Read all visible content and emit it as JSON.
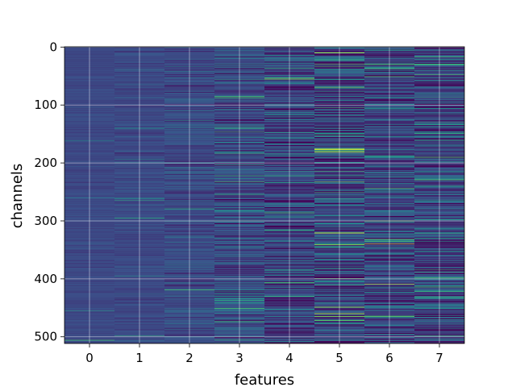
{
  "chart_data": {
    "type": "heatmap",
    "title": "",
    "xlabel": "features",
    "ylabel": "channels",
    "x_categories": [
      0,
      1,
      2,
      3,
      4,
      5,
      6,
      7
    ],
    "y_range": [
      0,
      511
    ],
    "y_ticks": [
      0,
      100,
      200,
      300,
      400,
      500
    ],
    "rows": 512,
    "grid": true,
    "colormap": "viridis",
    "colormap_stops": [
      "#440154",
      "#3b528b",
      "#21918c",
      "#5ec962",
      "#fde725"
    ],
    "column_profiles": [
      {
        "feature": 0,
        "mean": 0.22,
        "spread": 0.02
      },
      {
        "feature": 1,
        "mean": 0.22,
        "spread": 0.035
      },
      {
        "feature": 2,
        "mean": 0.23,
        "spread": 0.06
      },
      {
        "feature": 3,
        "mean": 0.22,
        "spread": 0.1
      },
      {
        "feature": 4,
        "mean": 0.2,
        "spread": 0.13
      },
      {
        "feature": 5,
        "mean": 0.2,
        "spread": 0.17
      },
      {
        "feature": 6,
        "mean": 0.21,
        "spread": 0.13
      },
      {
        "feature": 7,
        "mean": 0.2,
        "spread": 0.14
      }
    ],
    "highlights": [
      {
        "feature": 5,
        "channel": 176,
        "value": 0.95
      },
      {
        "feature": 5,
        "channel": 177,
        "value": 0.9
      },
      {
        "feature": 6,
        "channel": 409,
        "value": 0.98
      },
      {
        "feature": 3,
        "channel": 203,
        "value": 0.62
      },
      {
        "feature": 4,
        "channel": 406,
        "value": 0.7
      },
      {
        "feature": 7,
        "channel": 48,
        "value": 0.75
      },
      {
        "feature": 7,
        "channel": 322,
        "value": 0.6
      },
      {
        "feature": 5,
        "channel": 472,
        "value": 0.7
      }
    ]
  }
}
